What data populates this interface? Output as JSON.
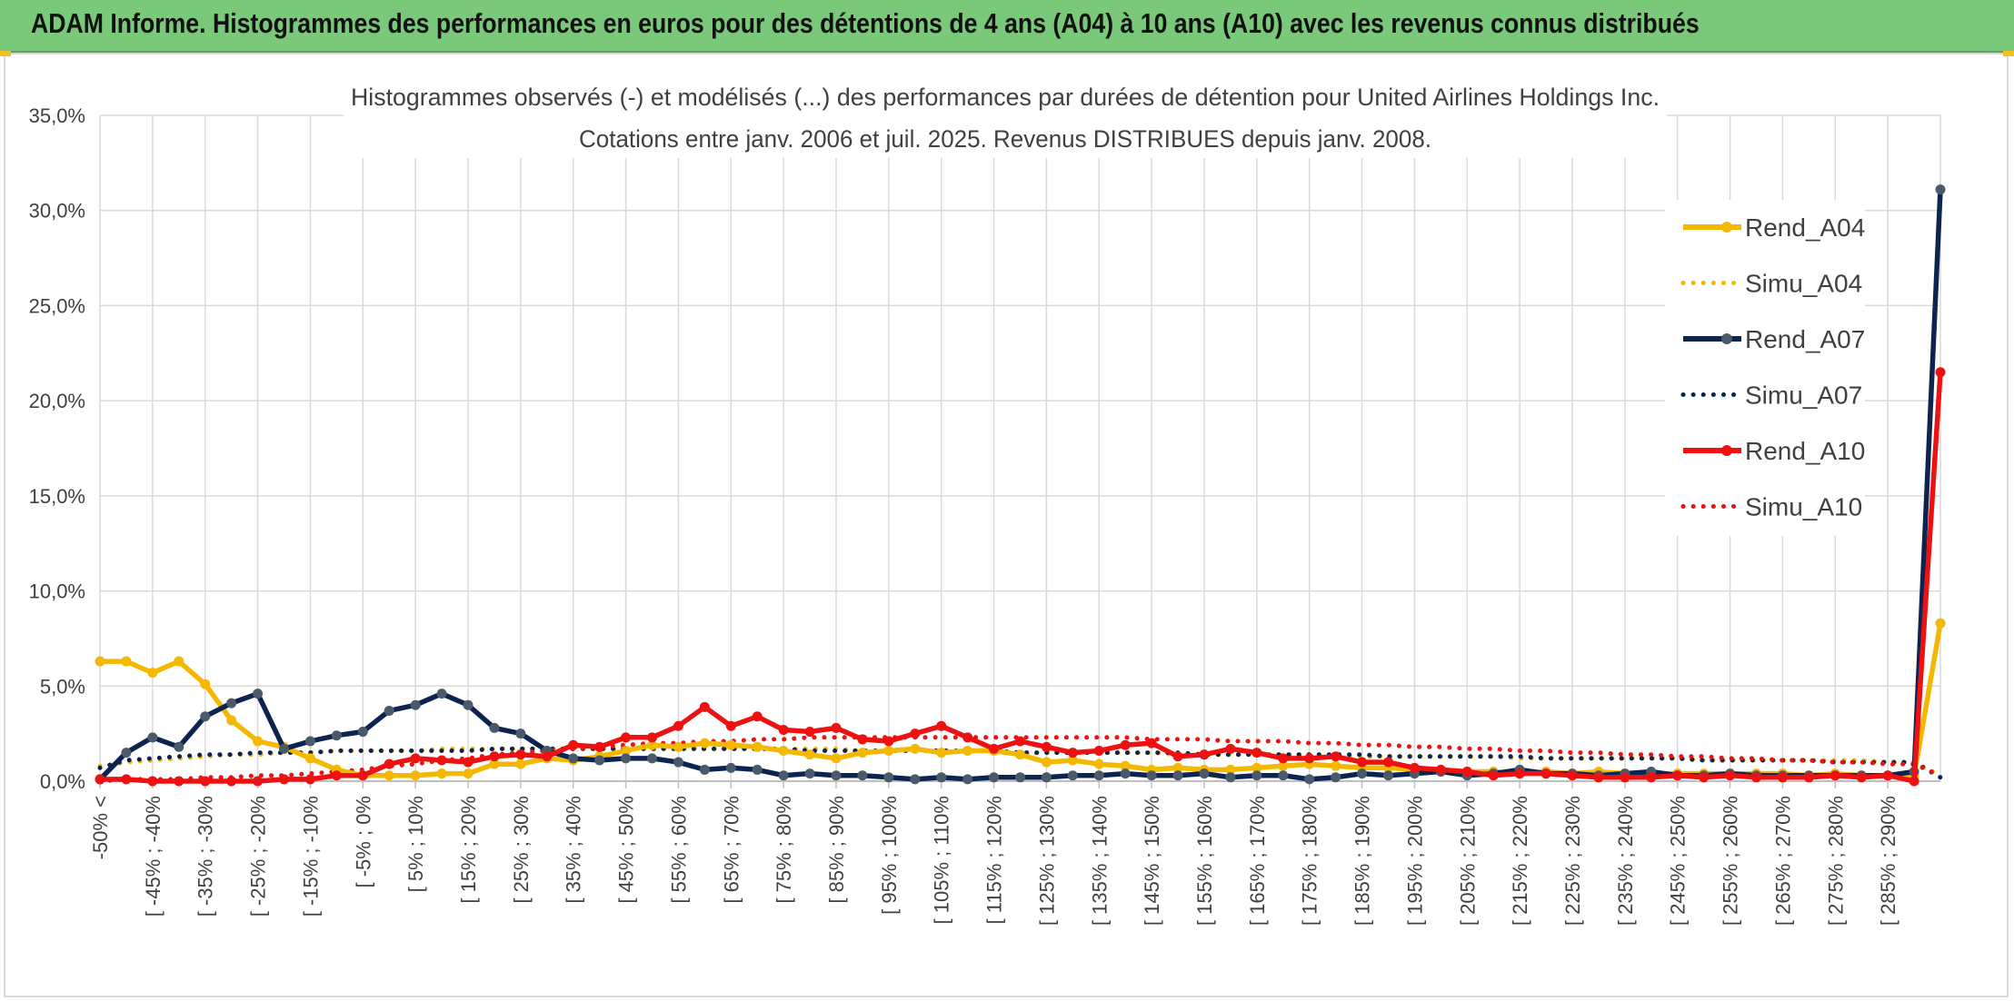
{
  "banner": {
    "title": "ADAM Informe. Histogrammes des performances en euros pour des détentions de 4 ans (A04) à 10 ans (A10) avec les revenus connus distribués"
  },
  "colors": {
    "banner_bg": "#7ac97a",
    "a04": "#f5b800",
    "a07": "#0d2350",
    "a10": "#ee1111",
    "grid": "#d9d9d9",
    "marker_a07": "#4a5a6a"
  },
  "chart_data": {
    "type": "line",
    "title": "Histogrammes observés (-) et modélisés (...) des performances par durées de détention pour United Airlines Holdings Inc.",
    "subtitle": "Cotations entre janv. 2006 et juil. 2025. Revenus DISTRIBUES depuis janv. 2008.",
    "xlabel": "",
    "ylabel": "",
    "ylim": [
      0,
      35
    ],
    "yticks": [
      "0,0%",
      "5,0%",
      "10,0%",
      "15,0%",
      "20,0%",
      "25,0%",
      "30,0%",
      "35,0%"
    ],
    "grid": true,
    "legend_position": "top-right",
    "x_tick_labels": [
      "-50% <",
      "[ -45% ; -40%",
      "[ -35% ; -30%",
      "[ -25% ; -20%",
      "[ -15% ; -10%",
      "[ -5% ; 0%",
      "[ 5% ; 10%",
      "[ 15% ; 20%",
      "[ 25% ; 30%",
      "[ 35% ; 40%",
      "[ 45% ; 50%",
      "[ 55% ; 60%",
      "[ 65% ; 70%",
      "[ 75% ; 80%",
      "[ 85% ; 90%",
      "[ 95% ; 100%",
      "[ 105% ; 110%",
      "[ 115% ; 120%",
      "[ 125% ; 130%",
      "[ 135% ; 140%",
      "[ 145% ; 150%",
      "[ 155% ; 160%",
      "[ 165% ; 170%",
      "[ 175% ; 180%",
      "[ 185% ; 190%",
      "[ 195% ; 200%",
      "[ 205% ; 210%",
      "[ 215% ; 220%",
      "[ 225% ; 230%",
      "[ 235% ; 240%",
      "[ 245% ; 250%",
      "[ 255% ; 260%",
      "[ 265% ; 270%",
      "[ 275% ; 280%",
      "[ 285% ; 290%"
    ],
    "num_bins": 71,
    "series": [
      {
        "name": "Rend_A04",
        "style": "solid",
        "color": "#f5b800",
        "values": [
          6.3,
          6.3,
          5.7,
          6.3,
          5.1,
          3.2,
          2.1,
          1.8,
          1.2,
          0.6,
          0.3,
          0.3,
          0.3,
          0.4,
          0.4,
          0.9,
          0.9,
          1.2,
          1.1,
          1.3,
          1.6,
          1.9,
          1.8,
          2.0,
          1.9,
          1.8,
          1.6,
          1.4,
          1.2,
          1.5,
          1.6,
          1.7,
          1.5,
          1.6,
          1.6,
          1.4,
          1.0,
          1.1,
          0.9,
          0.8,
          0.6,
          0.7,
          0.6,
          0.6,
          0.7,
          0.8,
          0.9,
          0.8,
          0.7,
          0.7,
          0.6,
          0.5,
          0.5,
          0.5,
          0.4,
          0.5,
          0.4,
          0.5,
          0.4,
          0.4,
          0.4,
          0.4,
          0.4,
          0.4,
          0.4,
          0.3,
          0.4,
          0.3,
          0.3,
          0.3,
          8.3
        ]
      },
      {
        "name": "Simu_A04",
        "style": "dotted",
        "color": "#f5b800",
        "values": [
          0.8,
          1.0,
          1.1,
          1.2,
          1.3,
          1.4,
          1.4,
          1.5,
          1.5,
          1.6,
          1.6,
          1.6,
          1.6,
          1.7,
          1.7,
          1.7,
          1.7,
          1.7,
          1.7,
          1.7,
          1.7,
          1.7,
          1.7,
          1.7,
          1.7,
          1.7,
          1.7,
          1.7,
          1.7,
          1.6,
          1.6,
          1.6,
          1.6,
          1.6,
          1.6,
          1.5,
          1.5,
          1.5,
          1.5,
          1.5,
          1.5,
          1.4,
          1.4,
          1.4,
          1.4,
          1.4,
          1.4,
          1.3,
          1.3,
          1.3,
          1.3,
          1.3,
          1.3,
          1.3,
          1.2,
          1.2,
          1.2,
          1.2,
          1.2,
          1.2,
          1.2,
          1.1,
          1.1,
          1.1,
          1.1,
          1.1,
          1.1,
          1.1,
          1.0,
          1.0,
          0.3
        ]
      },
      {
        "name": "Rend_A07",
        "style": "solid",
        "color": "#0d2350",
        "values": [
          0.1,
          1.5,
          2.3,
          1.8,
          3.4,
          4.1,
          4.6,
          1.7,
          2.1,
          2.4,
          2.6,
          3.7,
          4.0,
          4.6,
          4.0,
          2.8,
          2.5,
          1.6,
          1.2,
          1.1,
          1.2,
          1.2,
          1.0,
          0.6,
          0.7,
          0.6,
          0.3,
          0.4,
          0.3,
          0.3,
          0.2,
          0.1,
          0.2,
          0.1,
          0.2,
          0.2,
          0.2,
          0.3,
          0.3,
          0.4,
          0.3,
          0.3,
          0.4,
          0.2,
          0.3,
          0.3,
          0.1,
          0.2,
          0.4,
          0.3,
          0.4,
          0.5,
          0.3,
          0.4,
          0.6,
          0.4,
          0.4,
          0.3,
          0.4,
          0.5,
          0.3,
          0.3,
          0.4,
          0.3,
          0.3,
          0.3,
          0.3,
          0.3,
          0.3,
          0.5,
          31.1
        ]
      },
      {
        "name": "Simu_A07",
        "style": "dotted",
        "color": "#0d2350",
        "values": [
          0.7,
          1.1,
          1.2,
          1.3,
          1.4,
          1.4,
          1.5,
          1.5,
          1.5,
          1.6,
          1.6,
          1.6,
          1.6,
          1.6,
          1.6,
          1.7,
          1.7,
          1.7,
          1.7,
          1.7,
          1.7,
          1.7,
          1.7,
          1.7,
          1.7,
          1.7,
          1.7,
          1.6,
          1.6,
          1.6,
          1.6,
          1.6,
          1.6,
          1.6,
          1.6,
          1.5,
          1.5,
          1.5,
          1.5,
          1.5,
          1.5,
          1.5,
          1.4,
          1.4,
          1.4,
          1.4,
          1.4,
          1.4,
          1.4,
          1.3,
          1.3,
          1.3,
          1.3,
          1.3,
          1.3,
          1.2,
          1.2,
          1.2,
          1.2,
          1.2,
          1.2,
          1.1,
          1.1,
          1.1,
          1.1,
          1.1,
          1.0,
          1.0,
          1.0,
          1.0,
          0.2
        ]
      },
      {
        "name": "Rend_A10",
        "style": "solid",
        "color": "#ee1111",
        "values": [
          0.1,
          0.1,
          0.0,
          0.0,
          0.0,
          0.0,
          0.0,
          0.1,
          0.1,
          0.3,
          0.3,
          0.9,
          1.2,
          1.1,
          1.0,
          1.3,
          1.4,
          1.3,
          1.9,
          1.8,
          2.3,
          2.3,
          2.9,
          3.9,
          2.9,
          3.4,
          2.7,
          2.6,
          2.8,
          2.2,
          2.1,
          2.5,
          2.9,
          2.3,
          1.7,
          2.1,
          1.8,
          1.5,
          1.6,
          1.9,
          2.0,
          1.3,
          1.4,
          1.7,
          1.5,
          1.2,
          1.2,
          1.3,
          1.0,
          1.0,
          0.7,
          0.6,
          0.5,
          0.3,
          0.4,
          0.4,
          0.3,
          0.2,
          0.2,
          0.2,
          0.3,
          0.2,
          0.3,
          0.2,
          0.2,
          0.2,
          0.3,
          0.2,
          0.3,
          0.0,
          21.5
        ]
      },
      {
        "name": "Simu_A10",
        "style": "dotted",
        "color": "#ee1111",
        "values": [
          0.0,
          0.1,
          0.1,
          0.1,
          0.2,
          0.2,
          0.3,
          0.3,
          0.4,
          0.5,
          0.6,
          0.8,
          0.9,
          1.1,
          1.2,
          1.4,
          1.5,
          1.6,
          1.7,
          1.8,
          1.9,
          2.0,
          2.0,
          2.1,
          2.1,
          2.2,
          2.2,
          2.3,
          2.3,
          2.3,
          2.3,
          2.3,
          2.3,
          2.3,
          2.3,
          2.3,
          2.3,
          2.3,
          2.3,
          2.3,
          2.2,
          2.2,
          2.2,
          2.1,
          2.1,
          2.1,
          2.0,
          2.0,
          1.9,
          1.9,
          1.8,
          1.8,
          1.7,
          1.7,
          1.6,
          1.6,
          1.5,
          1.5,
          1.4,
          1.4,
          1.3,
          1.3,
          1.2,
          1.2,
          1.1,
          1.1,
          1.0,
          1.0,
          0.9,
          0.9,
          0.3
        ]
      }
    ]
  }
}
